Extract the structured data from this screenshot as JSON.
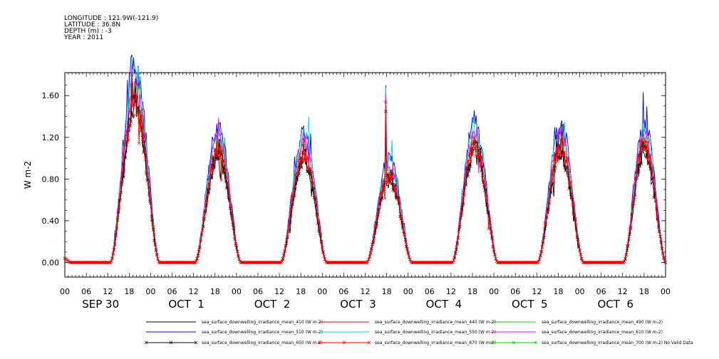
{
  "header": {
    "lines": [
      "LONGITUDE : 121.9W(-121.9)",
      "LATITUDE : 36.8N",
      "DEPTH (m) : -3",
      "YEAR : 2011"
    ]
  },
  "chart_data": {
    "type": "line",
    "ylabel": "W m-2",
    "ylim": [
      -0.14,
      1.82
    ],
    "yticks": [
      "0.00",
      "0.40",
      "0.80",
      "1.20",
      "1.60"
    ],
    "ytick_values": [
      0,
      0.4,
      0.8,
      1.2,
      1.6
    ],
    "xlim_hours": [
      0,
      168
    ],
    "hour_tick_labels": [
      "00",
      "06",
      "12",
      "18",
      "00",
      "06",
      "12",
      "18",
      "00",
      "06",
      "12",
      "18",
      "00",
      "06",
      "12",
      "18",
      "00",
      "06",
      "12",
      "18",
      "00",
      "06",
      "12",
      "18",
      "00",
      "06",
      "12",
      "18",
      "00"
    ],
    "day_labels": [
      "SEP 30",
      "OCT  1",
      "OCT  2",
      "OCT  3",
      "OCT  4",
      "OCT  5",
      "OCT  6"
    ],
    "days": [
      {
        "rise": 12.8,
        "set": 26.4,
        "p1": 18.7,
        "peak": 1.52,
        "spike": 1.7,
        "p2": 19.8,
        "peak2": 1.05
      },
      {
        "rise": 36.5,
        "set": 49.2,
        "p1": 42.8,
        "peak": 1.05,
        "spike": 1.05,
        "p2": 43.6,
        "peak2": 1.03
      },
      {
        "rise": 60.5,
        "set": 73.2,
        "p1": 66.7,
        "peak": 1.02,
        "spike": 1.12,
        "p2": 67.4,
        "peak2": 1.08
      },
      {
        "rise": 84.5,
        "set": 97.0,
        "p1": 89.8,
        "peak": 0.82,
        "spike": 1.45,
        "p2": 91.3,
        "peak2": 0.95
      },
      {
        "rise": 108.4,
        "set": 121.0,
        "p1": 113.8,
        "peak": 1.1,
        "spike": 1.1,
        "p2": 114.8,
        "peak2": 1.03
      },
      {
        "rise": 132.3,
        "set": 145.0,
        "p1": 138.7,
        "peak": 1.08,
        "spike": 1.08,
        "p2": 139.0,
        "peak2": 1.07
      },
      {
        "rise": 156.3,
        "set": 168.0,
        "p1": 161.6,
        "peak": 1.1,
        "spike": 1.1,
        "p2": 163.0,
        "peak2": 1.0
      }
    ],
    "series": [
      {
        "name": "sea_surface_downwelling_irradiance_mean_410 (W m-2)",
        "color": "#000000",
        "scale": 0.95,
        "marker": "none"
      },
      {
        "name": "sea_surface_downwelling_irradiance_mean_440 (W m-2)",
        "color": "#ff0000",
        "scale": 1.0,
        "marker": "none"
      },
      {
        "name": "sea_surface_downwelling_irradiance_mean_490 (W m-2)",
        "color": "#00cc00",
        "scale": 1.08,
        "marker": "none"
      },
      {
        "name": "sea_surface_downwelling_irradiance_mean_510 (W m-2)",
        "color": "#0000ff",
        "scale": 1.22,
        "marker": "none"
      },
      {
        "name": "sea_surface_downwelling_irradiance_mean_550 (W m-2)",
        "color": "#00d8d8",
        "scale": 1.18,
        "marker": "none"
      },
      {
        "name": "sea_surface_downwelling_irradiance_mean_610 (W m-2)",
        "color": "#ff00ff",
        "scale": 1.12,
        "marker": "none"
      },
      {
        "name": "sea_surface_downwelling_irradiance_mean_650 (W m-2)",
        "color": "#000000",
        "scale": 0.98,
        "marker": "x"
      },
      {
        "name": "sea_surface_downwelling_irradiance_mean_670 (W m-2)",
        "color": "#ff0000",
        "scale": 1.02,
        "marker": "x"
      },
      {
        "name": "sea_surface_downwelling_irradiance_mean_700 (W m-2) No Valid Data",
        "color": "#00cc00",
        "scale": 0,
        "marker": "x"
      }
    ]
  }
}
